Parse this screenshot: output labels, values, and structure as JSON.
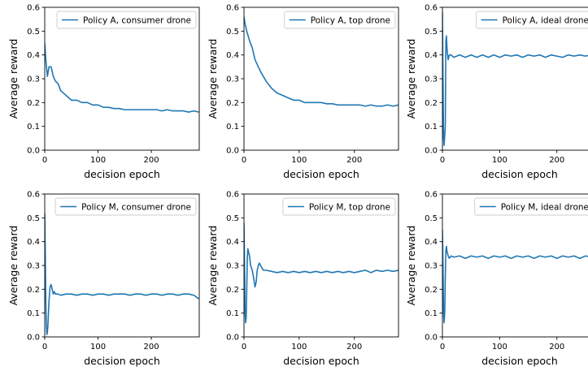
{
  "figure": {
    "background": "#ffffff"
  },
  "chart_data": [
    {
      "type": "line",
      "xlabel": "decision epoch",
      "ylabel": "Average reward",
      "xlim": [
        0,
        290
      ],
      "ylim": [
        0,
        0.6
      ],
      "x_ticks": [
        0,
        100,
        200
      ],
      "y_ticks": [
        0.0,
        0.1,
        0.2,
        0.3,
        0.4,
        0.5,
        0.6
      ],
      "x_tick_labels": [
        "0",
        "100",
        "200"
      ],
      "y_tick_labels": [
        "0.0",
        "0.1",
        "0.2",
        "0.3",
        "0.4",
        "0.5",
        "0.6"
      ],
      "grid": false,
      "legend_position": "top-right",
      "series": [
        {
          "name": "Policy A, consumer drone",
          "color": "#1f77b4",
          "x": [
            0,
            2,
            5,
            8,
            12,
            16,
            20,
            25,
            30,
            40,
            50,
            60,
            70,
            80,
            90,
            100,
            110,
            120,
            130,
            140,
            150,
            160,
            170,
            180,
            190,
            200,
            210,
            220,
            230,
            240,
            250,
            260,
            270,
            280,
            289
          ],
          "y": [
            0.45,
            0.38,
            0.31,
            0.35,
            0.35,
            0.31,
            0.29,
            0.28,
            0.25,
            0.23,
            0.21,
            0.21,
            0.2,
            0.2,
            0.19,
            0.19,
            0.18,
            0.18,
            0.175,
            0.175,
            0.17,
            0.17,
            0.17,
            0.17,
            0.17,
            0.17,
            0.17,
            0.165,
            0.17,
            0.165,
            0.165,
            0.165,
            0.16,
            0.165,
            0.16
          ]
        }
      ]
    },
    {
      "type": "line",
      "xlabel": "decision epoch",
      "ylabel": "Average reward",
      "xlim": [
        0,
        280
      ],
      "ylim": [
        0,
        0.6
      ],
      "x_ticks": [
        0,
        100,
        200
      ],
      "y_ticks": [
        0.0,
        0.1,
        0.2,
        0.3,
        0.4,
        0.5,
        0.6
      ],
      "x_tick_labels": [
        "0",
        "100",
        "200"
      ],
      "y_tick_labels": [
        "0.0",
        "0.1",
        "0.2",
        "0.3",
        "0.4",
        "0.5",
        "0.6"
      ],
      "grid": false,
      "legend_position": "top-right",
      "series": [
        {
          "name": "Policy A, top drone",
          "color": "#1f77b4",
          "x": [
            0,
            2,
            5,
            10,
            15,
            20,
            30,
            40,
            50,
            60,
            70,
            80,
            90,
            100,
            110,
            120,
            130,
            140,
            150,
            160,
            170,
            180,
            190,
            200,
            210,
            220,
            230,
            240,
            250,
            260,
            270,
            280
          ],
          "y": [
            0.56,
            0.53,
            0.5,
            0.46,
            0.43,
            0.38,
            0.33,
            0.29,
            0.26,
            0.24,
            0.23,
            0.22,
            0.21,
            0.21,
            0.2,
            0.2,
            0.2,
            0.2,
            0.195,
            0.195,
            0.19,
            0.19,
            0.19,
            0.19,
            0.19,
            0.185,
            0.19,
            0.185,
            0.185,
            0.19,
            0.185,
            0.19
          ]
        }
      ]
    },
    {
      "type": "line",
      "xlabel": "decision epoch",
      "ylabel": "Average reward",
      "xlim": [
        0,
        270
      ],
      "ylim": [
        0,
        0.6
      ],
      "x_ticks": [
        0,
        100,
        200
      ],
      "y_ticks": [
        0.0,
        0.1,
        0.2,
        0.3,
        0.4,
        0.5,
        0.6
      ],
      "x_tick_labels": [
        "0",
        "100",
        "200"
      ],
      "y_tick_labels": [
        "0.0",
        "0.1",
        "0.2",
        "0.3",
        "0.4",
        "0.5",
        "0.6"
      ],
      "grid": false,
      "legend_position": "top-right",
      "series": [
        {
          "name": "Policy A, ideal drone",
          "color": "#1f77b4",
          "x": [
            0,
            1,
            2,
            3,
            4,
            5,
            6,
            7,
            8,
            9,
            10,
            12,
            15,
            20,
            30,
            40,
            50,
            60,
            70,
            80,
            90,
            100,
            110,
            120,
            130,
            140,
            150,
            160,
            170,
            180,
            190,
            200,
            210,
            220,
            230,
            240,
            250,
            260,
            270
          ],
          "y": [
            0.58,
            0.3,
            0.05,
            0.02,
            0.06,
            0.1,
            0.45,
            0.48,
            0.43,
            0.4,
            0.38,
            0.4,
            0.4,
            0.39,
            0.4,
            0.39,
            0.4,
            0.39,
            0.4,
            0.39,
            0.4,
            0.39,
            0.4,
            0.395,
            0.4,
            0.39,
            0.4,
            0.395,
            0.4,
            0.39,
            0.4,
            0.395,
            0.39,
            0.4,
            0.395,
            0.4,
            0.395,
            0.4,
            0.395
          ]
        }
      ]
    },
    {
      "type": "line",
      "xlabel": "decision epoch",
      "ylabel": "Average reward",
      "xlim": [
        0,
        290
      ],
      "ylim": [
        0,
        0.6
      ],
      "x_ticks": [
        0,
        100,
        200
      ],
      "y_ticks": [
        0.0,
        0.1,
        0.2,
        0.3,
        0.4,
        0.5,
        0.6
      ],
      "x_tick_labels": [
        "0",
        "100",
        "200"
      ],
      "y_tick_labels": [
        "0.0",
        "0.1",
        "0.2",
        "0.3",
        "0.4",
        "0.5",
        "0.6"
      ],
      "grid": false,
      "legend_position": "top-right",
      "series": [
        {
          "name": "Policy M, consumer drone",
          "color": "#1f77b4",
          "x": [
            0,
            1,
            2,
            3,
            4,
            5,
            6,
            8,
            10,
            12,
            14,
            16,
            18,
            20,
            25,
            30,
            40,
            50,
            60,
            70,
            80,
            90,
            100,
            110,
            120,
            130,
            140,
            150,
            160,
            170,
            180,
            190,
            200,
            210,
            220,
            230,
            240,
            250,
            260,
            270,
            280,
            289
          ],
          "y": [
            0.52,
            0.35,
            0.15,
            0.05,
            0.01,
            0.02,
            0.05,
            0.15,
            0.21,
            0.22,
            0.2,
            0.18,
            0.19,
            0.18,
            0.18,
            0.175,
            0.18,
            0.18,
            0.175,
            0.18,
            0.18,
            0.175,
            0.18,
            0.18,
            0.175,
            0.18,
            0.18,
            0.18,
            0.175,
            0.18,
            0.18,
            0.175,
            0.18,
            0.18,
            0.175,
            0.18,
            0.18,
            0.175,
            0.18,
            0.18,
            0.175,
            0.16
          ]
        }
      ]
    },
    {
      "type": "line",
      "xlabel": "decision epoch",
      "ylabel": "Average reward",
      "xlim": [
        0,
        280
      ],
      "ylim": [
        0,
        0.6
      ],
      "x_ticks": [
        0,
        100,
        200
      ],
      "y_ticks": [
        0.0,
        0.1,
        0.2,
        0.3,
        0.4,
        0.5,
        0.6
      ],
      "x_tick_labels": [
        "0",
        "100",
        "200"
      ],
      "y_tick_labels": [
        "0.0",
        "0.1",
        "0.2",
        "0.3",
        "0.4",
        "0.5",
        "0.6"
      ],
      "grid": false,
      "legend_position": "top-right",
      "series": [
        {
          "name": "Policy M, top drone",
          "color": "#1f77b4",
          "x": [
            0,
            1,
            2,
            3,
            4,
            5,
            6,
            7,
            8,
            10,
            12,
            15,
            18,
            20,
            22,
            24,
            26,
            28,
            30,
            35,
            40,
            50,
            60,
            70,
            80,
            90,
            100,
            110,
            120,
            130,
            140,
            150,
            160,
            170,
            180,
            190,
            200,
            210,
            220,
            230,
            240,
            250,
            260,
            270,
            280
          ],
          "y": [
            0.48,
            0.3,
            0.1,
            0.06,
            0.08,
            0.2,
            0.33,
            0.37,
            0.36,
            0.34,
            0.3,
            0.28,
            0.24,
            0.21,
            0.23,
            0.28,
            0.3,
            0.31,
            0.3,
            0.28,
            0.28,
            0.275,
            0.27,
            0.275,
            0.27,
            0.275,
            0.27,
            0.275,
            0.27,
            0.275,
            0.27,
            0.275,
            0.27,
            0.275,
            0.27,
            0.275,
            0.27,
            0.275,
            0.28,
            0.27,
            0.28,
            0.275,
            0.28,
            0.275,
            0.28
          ]
        }
      ]
    },
    {
      "type": "line",
      "xlabel": "decision epoch",
      "ylabel": "Average reward",
      "xlim": [
        0,
        270
      ],
      "ylim": [
        0,
        0.6
      ],
      "x_ticks": [
        0,
        100,
        200
      ],
      "y_ticks": [
        0.0,
        0.1,
        0.2,
        0.3,
        0.4,
        0.5,
        0.6
      ],
      "x_tick_labels": [
        "0",
        "100",
        "200"
      ],
      "y_tick_labels": [
        "0.0",
        "0.1",
        "0.2",
        "0.3",
        "0.4",
        "0.5",
        "0.6"
      ],
      "grid": false,
      "legend_position": "top-right",
      "series": [
        {
          "name": "Policy M, ideal drone",
          "color": "#1f77b4",
          "x": [
            0,
            1,
            2,
            3,
            4,
            5,
            6,
            7,
            8,
            10,
            12,
            15,
            20,
            30,
            40,
            50,
            60,
            70,
            80,
            90,
            100,
            110,
            120,
            130,
            140,
            150,
            160,
            170,
            180,
            190,
            200,
            210,
            220,
            230,
            240,
            250,
            260,
            270
          ],
          "y": [
            0.45,
            0.3,
            0.1,
            0.06,
            0.1,
            0.25,
            0.36,
            0.38,
            0.36,
            0.34,
            0.33,
            0.34,
            0.335,
            0.34,
            0.33,
            0.34,
            0.335,
            0.34,
            0.33,
            0.34,
            0.335,
            0.34,
            0.33,
            0.34,
            0.335,
            0.34,
            0.33,
            0.34,
            0.335,
            0.34,
            0.33,
            0.34,
            0.335,
            0.34,
            0.33,
            0.34,
            0.335,
            0.34
          ]
        }
      ]
    }
  ]
}
